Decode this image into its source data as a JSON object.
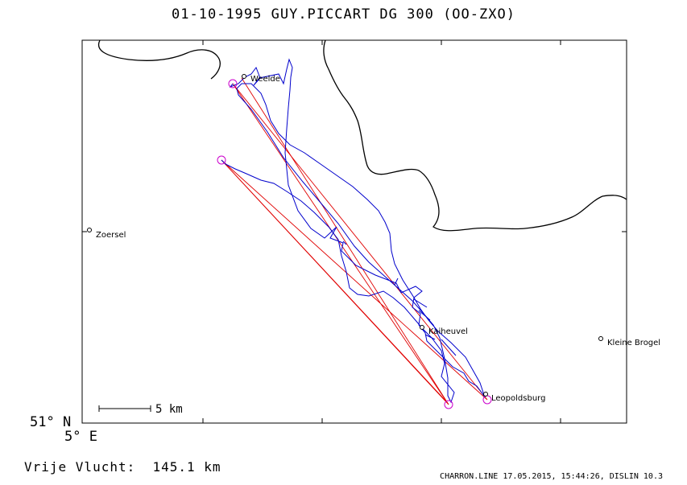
{
  "title": "01-10-1995   GUY.PICCART   DG 300 (OO-ZXO)",
  "colors": {
    "track": "#0000cc",
    "task": "#e00000",
    "turnpoint": "#cc00cc",
    "border": "#000000"
  },
  "places": [
    {
      "name": "Weelde"
    },
    {
      "name": "Zoersel"
    },
    {
      "name": "Kaiheuvel"
    },
    {
      "name": "Kleine Brogel"
    },
    {
      "name": "Leopoldsburg"
    }
  ],
  "coords": {
    "lat": "51° N",
    "lon": "5° E"
  },
  "scale": {
    "label": "5 km"
  },
  "distance": {
    "label": "Vrije Vlucht:",
    "value": "145.1 km"
  },
  "footer": "CHARRON.LINE 17.05.2015, 15:44:26, DISLIN 10.3"
}
